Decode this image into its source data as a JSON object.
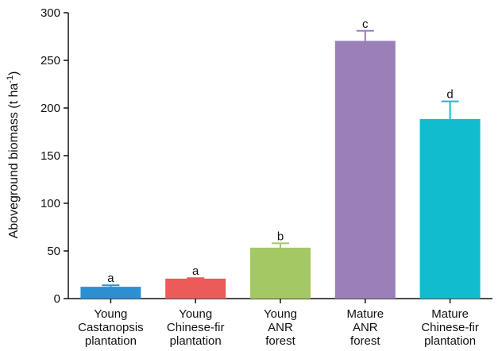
{
  "chart_data": {
    "type": "bar",
    "categories": [
      [
        "Young",
        "Castanopsis",
        "plantation"
      ],
      [
        "Young",
        "Chinese-fir",
        "plantation"
      ],
      [
        "Young",
        "ANR",
        "forest"
      ],
      [
        "Mature",
        "ANR",
        "forest"
      ],
      [
        "Mature",
        "Chinese-fir",
        "plantation"
      ]
    ],
    "values": [
      12,
      20.5,
      53,
      270,
      188
    ],
    "errors": [
      2,
      1,
      5,
      11,
      19
    ],
    "significance_letters": [
      "a",
      "a",
      "b",
      "c",
      "d"
    ],
    "colors": [
      "#2b8fd0",
      "#ec5a5a",
      "#a4c863",
      "#9a7fb8",
      "#12bccf"
    ],
    "ylabel": "Aboveground biomass (t ha",
    "ylabel_superscript": "-1",
    "ylabel_close": ")",
    "ylim": [
      0,
      300
    ],
    "yticks": [
      "0",
      "50",
      "100",
      "150",
      "200",
      "250",
      "300"
    ],
    "grid": false
  }
}
